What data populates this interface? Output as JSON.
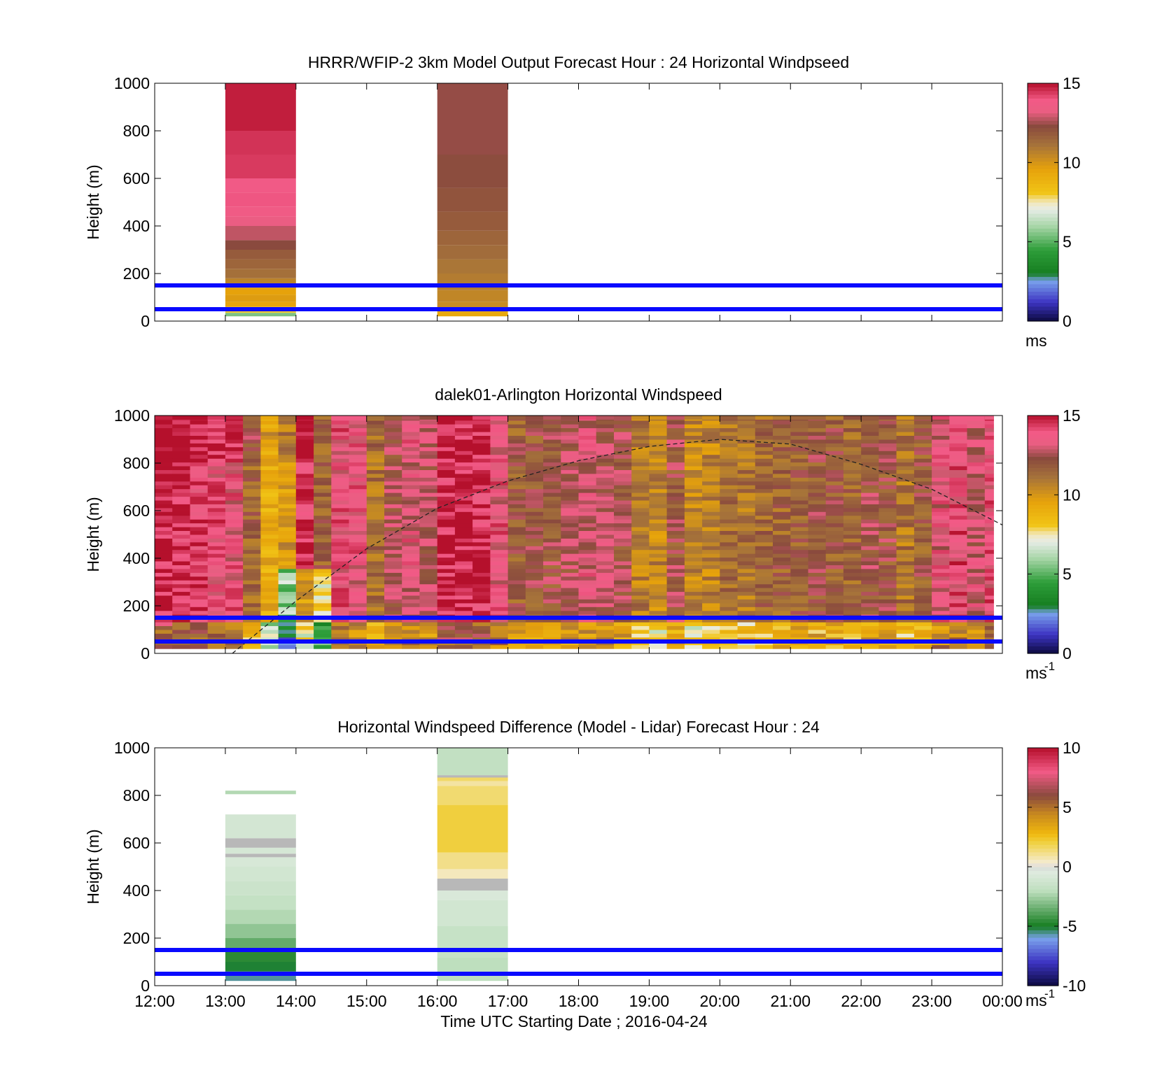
{
  "figure": {
    "xlabel": "Time UTC  Starting Date ; 2016-04-24"
  },
  "chart_data": [
    {
      "type": "heatmap",
      "title": "HRRR/WFIP-2 3km Model Output   Forecast Hour : 24 Horizontal Windpseed",
      "ylabel": "Height (m)",
      "ylim": [
        0,
        1000
      ],
      "yticks": [
        "0",
        "200",
        "400",
        "600",
        "800",
        "1000"
      ],
      "xlim": [
        12,
        24
      ],
      "xticks": [
        "12:00",
        "13:00",
        "14:00",
        "15:00",
        "16:00",
        "17:00",
        "18:00",
        "19:00",
        "20:00",
        "21:00",
        "22:00",
        "23:00",
        "00:00"
      ],
      "show_xtick_labels": false,
      "colorbar": {
        "clim": [
          0,
          15
        ],
        "ticks": [
          "0",
          "5",
          "10",
          "15"
        ],
        "unit": "ms",
        "unit_sup": "",
        "scale": "windspeed"
      },
      "reference_lines_m": [
        50,
        150
      ],
      "columns": [
        {
          "x0": 13,
          "x1": 14,
          "cells": [
            {
              "h0": 20,
              "h1": 35,
              "value": 5.5
            },
            {
              "h0": 35,
              "h1": 60,
              "value": 8.0
            },
            {
              "h0": 60,
              "h1": 80,
              "value": 9.5
            },
            {
              "h0": 80,
              "h1": 110,
              "value": 9.8
            },
            {
              "h0": 110,
              "h1": 140,
              "value": 9.6
            },
            {
              "h0": 140,
              "h1": 180,
              "value": 10.6
            },
            {
              "h0": 180,
              "h1": 220,
              "value": 11.2
            },
            {
              "h0": 220,
              "h1": 260,
              "value": 11.5
            },
            {
              "h0": 260,
              "h1": 300,
              "value": 11.8
            },
            {
              "h0": 300,
              "h1": 340,
              "value": 12.3
            },
            {
              "h0": 340,
              "h1": 400,
              "value": 12.8
            },
            {
              "h0": 400,
              "h1": 440,
              "value": 13.4
            },
            {
              "h0": 440,
              "h1": 480,
              "value": 13.8
            },
            {
              "h0": 480,
              "h1": 540,
              "value": 14.0
            },
            {
              "h0": 540,
              "h1": 600,
              "value": 13.9
            },
            {
              "h0": 600,
              "h1": 700,
              "value": 14.4
            },
            {
              "h0": 700,
              "h1": 800,
              "value": 14.5
            },
            {
              "h0": 800,
              "h1": 1000,
              "value": 14.8
            }
          ]
        },
        {
          "x0": 16,
          "x1": 17,
          "cells": [
            {
              "h0": 20,
              "h1": 40,
              "value": 9.3
            },
            {
              "h0": 40,
              "h1": 80,
              "value": 10.3
            },
            {
              "h0": 80,
              "h1": 130,
              "value": 10.5
            },
            {
              "h0": 130,
              "h1": 200,
              "value": 10.8
            },
            {
              "h0": 200,
              "h1": 260,
              "value": 11.0
            },
            {
              "h0": 260,
              "h1": 320,
              "value": 11.3
            },
            {
              "h0": 320,
              "h1": 380,
              "value": 11.5
            },
            {
              "h0": 380,
              "h1": 460,
              "value": 11.8
            },
            {
              "h0": 460,
              "h1": 560,
              "value": 12.0
            },
            {
              "h0": 560,
              "h1": 700,
              "value": 12.2
            },
            {
              "h0": 700,
              "h1": 1000,
              "value": 12.4
            }
          ]
        }
      ]
    },
    {
      "type": "heatmap",
      "title": "dalek01-Arlington  Horizontal Windspeed",
      "ylabel": "Height (m)",
      "ylim": [
        0,
        1000
      ],
      "yticks": [
        "0",
        "200",
        "400",
        "600",
        "800",
        "1000"
      ],
      "xlim": [
        12,
        24
      ],
      "xticks": [
        "12:00",
        "13:00",
        "14:00",
        "15:00",
        "16:00",
        "17:00",
        "18:00",
        "19:00",
        "20:00",
        "21:00",
        "22:00",
        "23:00",
        "00:00"
      ],
      "show_xtick_labels": false,
      "colorbar": {
        "clim": [
          0,
          15
        ],
        "ticks": [
          "0",
          "5",
          "10",
          "15"
        ],
        "unit": "ms",
        "unit_sup": "-1",
        "scale": "windspeed"
      },
      "reference_lines_m": [
        50,
        150
      ],
      "column_width_h": 0.25,
      "x_end": 23.875,
      "profile_means_ms": [
        14.8,
        14.5,
        14.2,
        13.8,
        13.6,
        11.5,
        9.0,
        10.0,
        14.6,
        11.6,
        13.8,
        13.5,
        11.2,
        12.6,
        13.3,
        12.9,
        14.6,
        14.8,
        14.4,
        13.6,
        11.8,
        12.0,
        12.2,
        12.6,
        13.2,
        12.8,
        12.4,
        10.8,
        10.5,
        12.2,
        10.4,
        10.6,
        11.2,
        11.0,
        11.4,
        11.6,
        11.8,
        12.0,
        11.8,
        11.5,
        12.3,
        12.1,
        11.0,
        11.8,
        13.4,
        13.9,
        13.1,
        13.8
      ],
      "dashed_curve": {
        "x": [
          13.1,
          14,
          15,
          16,
          17,
          18,
          19,
          20,
          21,
          22,
          23,
          24
        ],
        "y_m": [
          0,
          220,
          440,
          610,
          725,
          810,
          870,
          900,
          880,
          795,
          690,
          540
        ]
      }
    },
    {
      "type": "heatmap",
      "title": "Horizontal Windspeed Difference (Model - Lidar) Forecast Hour : 24",
      "ylabel": "Height (m)",
      "ylim": [
        0,
        1000
      ],
      "yticks": [
        "0",
        "200",
        "400",
        "600",
        "800",
        "1000"
      ],
      "xlim": [
        12,
        24
      ],
      "xticks": [
        "12:00",
        "13:00",
        "14:00",
        "15:00",
        "16:00",
        "17:00",
        "18:00",
        "19:00",
        "20:00",
        "21:00",
        "22:00",
        "23:00",
        "00:00"
      ],
      "show_xtick_labels": true,
      "colorbar": {
        "clim": [
          -10,
          10
        ],
        "ticks": [
          "-10",
          "-5",
          "0",
          "5",
          "10"
        ],
        "unit": "ms",
        "unit_sup": "-1",
        "scale": "difference"
      },
      "reference_lines_m": [
        50,
        150
      ],
      "columns": [
        {
          "x0": 13,
          "x1": 14,
          "cells": [
            {
              "h0": 20,
              "h1": 60,
              "value": -5.6
            },
            {
              "h0": 60,
              "h1": 100,
              "value": -5.1
            },
            {
              "h0": 100,
              "h1": 150,
              "value": -4.6
            },
            {
              "h0": 150,
              "h1": 200,
              "value": -3.6
            },
            {
              "h0": 200,
              "h1": 260,
              "value": -2.8
            },
            {
              "h0": 260,
              "h1": 320,
              "value": -2.2
            },
            {
              "h0": 320,
              "h1": 380,
              "value": -1.7
            },
            {
              "h0": 380,
              "h1": 440,
              "value": -1.4
            },
            {
              "h0": 440,
              "h1": 500,
              "value": -1.1
            },
            {
              "h0": 500,
              "h1": 540,
              "value": -0.8
            },
            {
              "h0": 540,
              "h1": 555,
              "value": 0.0
            },
            {
              "h0": 555,
              "h1": 580,
              "value": -0.9
            },
            {
              "h0": 580,
              "h1": 620,
              "value": 0.0
            },
            {
              "h0": 620,
              "h1": 720,
              "value": -1.0
            },
            {
              "h0": 805,
              "h1": 820,
              "value": -2.2
            }
          ]
        },
        {
          "x0": 16,
          "x1": 17,
          "cells": [
            {
              "h0": 20,
              "h1": 120,
              "value": -2.0
            },
            {
              "h0": 120,
              "h1": 250,
              "value": -1.6
            },
            {
              "h0": 250,
              "h1": 360,
              "value": -1.1
            },
            {
              "h0": 360,
              "h1": 400,
              "value": -0.7
            },
            {
              "h0": 400,
              "h1": 450,
              "value": 0.0
            },
            {
              "h0": 450,
              "h1": 490,
              "value": 0.6
            },
            {
              "h0": 490,
              "h1": 560,
              "value": 1.2
            },
            {
              "h0": 560,
              "h1": 760,
              "value": 2.1
            },
            {
              "h0": 760,
              "h1": 840,
              "value": 1.5
            },
            {
              "h0": 840,
              "h1": 860,
              "value": 0.9
            },
            {
              "h0": 860,
              "h1": 875,
              "value": 1.6
            },
            {
              "h0": 875,
              "h1": 885,
              "value": 0.0
            },
            {
              "h0": 885,
              "h1": 1000,
              "value": -1.8
            }
          ]
        }
      ]
    }
  ]
}
